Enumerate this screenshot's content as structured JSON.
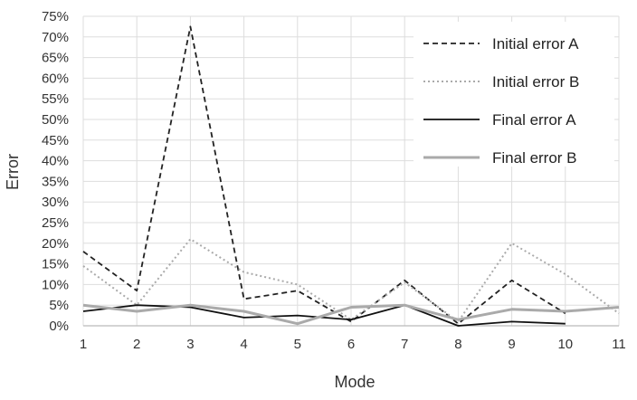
{
  "chart_data": {
    "type": "line",
    "title": "",
    "xlabel": "Mode",
    "ylabel": "Error",
    "x": [
      1,
      2,
      3,
      4,
      5,
      6,
      7,
      8,
      9,
      10,
      11
    ],
    "xlim": [
      1,
      11
    ],
    "ylim": [
      0,
      75
    ],
    "y_ticks": [
      0,
      5,
      10,
      15,
      20,
      25,
      30,
      35,
      40,
      45,
      50,
      55,
      60,
      65,
      70,
      75
    ],
    "y_tick_labels": [
      "0%",
      "5%",
      "10%",
      "15%",
      "20%",
      "25%",
      "30%",
      "35%",
      "40%",
      "45%",
      "50%",
      "55%",
      "60%",
      "65%",
      "70%",
      "75%"
    ],
    "x_tick_labels": [
      "1",
      "2",
      "3",
      "4",
      "5",
      "6",
      "7",
      "8",
      "9",
      "10",
      "11"
    ],
    "grid": true,
    "legend_position": "top-right",
    "series": [
      {
        "name": "Initial error A",
        "style": "dashed",
        "color": "#222222",
        "values": [
          18,
          8.5,
          72.5,
          6.5,
          8.5,
          1,
          11,
          0.5,
          11,
          3,
          null
        ]
      },
      {
        "name": "Initial error B",
        "style": "dotted",
        "color": "#aaaaaa",
        "values": [
          14.5,
          5,
          21,
          13,
          10,
          1.5,
          10.5,
          1,
          20,
          12.5,
          3
        ]
      },
      {
        "name": "Final error A",
        "style": "solid",
        "color": "#111111",
        "values": [
          3.5,
          5,
          4.5,
          2,
          2.5,
          1.5,
          5,
          0,
          1,
          0.5,
          null
        ]
      },
      {
        "name": "Final error B",
        "style": "solid-thick",
        "color": "#aaaaaa",
        "values": [
          5,
          3.5,
          5,
          3.5,
          0.5,
          4.5,
          5,
          1.5,
          4,
          3.5,
          4.5
        ]
      }
    ]
  }
}
